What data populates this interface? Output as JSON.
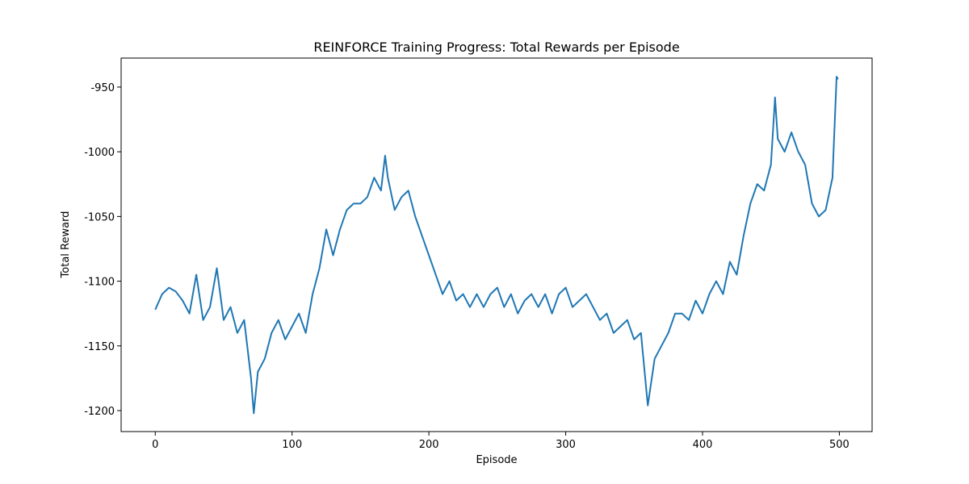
{
  "chart_data": {
    "type": "line",
    "title": "REINFORCE Training Progress: Total Rewards per Episode",
    "xlabel": "Episode",
    "ylabel": "Total Reward",
    "x": [
      0,
      5,
      10,
      15,
      20,
      25,
      30,
      35,
      40,
      45,
      50,
      55,
      60,
      65,
      70,
      72,
      75,
      80,
      85,
      90,
      95,
      100,
      105,
      110,
      115,
      120,
      125,
      130,
      135,
      140,
      145,
      150,
      155,
      160,
      165,
      168,
      170,
      175,
      180,
      185,
      190,
      195,
      200,
      205,
      210,
      215,
      220,
      225,
      230,
      235,
      240,
      245,
      250,
      255,
      260,
      265,
      270,
      275,
      280,
      285,
      290,
      295,
      300,
      305,
      310,
      315,
      320,
      325,
      330,
      335,
      340,
      345,
      350,
      355,
      360,
      365,
      370,
      375,
      380,
      385,
      390,
      395,
      400,
      405,
      410,
      415,
      420,
      425,
      430,
      435,
      440,
      445,
      450,
      453,
      455,
      460,
      465,
      470,
      475,
      480,
      485,
      490,
      495,
      498,
      499
    ],
    "series": [
      {
        "name": "Total Reward",
        "color": "#1f77b4",
        "values": [
          -1122,
          -1110,
          -1105,
          -1108,
          -1115,
          -1125,
          -1095,
          -1130,
          -1120,
          -1090,
          -1130,
          -1120,
          -1140,
          -1130,
          -1175,
          -1202,
          -1170,
          -1160,
          -1140,
          -1130,
          -1145,
          -1135,
          -1125,
          -1140,
          -1110,
          -1090,
          -1060,
          -1080,
          -1060,
          -1045,
          -1040,
          -1040,
          -1035,
          -1020,
          -1030,
          -1003,
          -1020,
          -1045,
          -1035,
          -1030,
          -1050,
          -1065,
          -1080,
          -1095,
          -1110,
          -1100,
          -1115,
          -1110,
          -1120,
          -1110,
          -1120,
          -1110,
          -1105,
          -1120,
          -1110,
          -1125,
          -1115,
          -1110,
          -1120,
          -1110,
          -1125,
          -1110,
          -1105,
          -1120,
          -1115,
          -1110,
          -1120,
          -1130,
          -1125,
          -1140,
          -1135,
          -1130,
          -1145,
          -1140,
          -1196,
          -1160,
          -1150,
          -1140,
          -1125,
          -1125,
          -1130,
          -1115,
          -1125,
          -1110,
          -1100,
          -1110,
          -1085,
          -1095,
          -1065,
          -1040,
          -1025,
          -1030,
          -1010,
          -958,
          -990,
          -1000,
          -985,
          -1000,
          -1010,
          -1040,
          -1050,
          -1045,
          -1020,
          -942,
          -944
        ]
      }
    ],
    "xlim": [
      -24.95,
      523.95
    ],
    "xticks": [
      0,
      100,
      200,
      300,
      400,
      500
    ],
    "ylim": [
      -1216.2,
      -927.6
    ],
    "yticks": [
      -1200,
      -1150,
      -1100,
      -1050,
      -1000,
      -950
    ]
  }
}
